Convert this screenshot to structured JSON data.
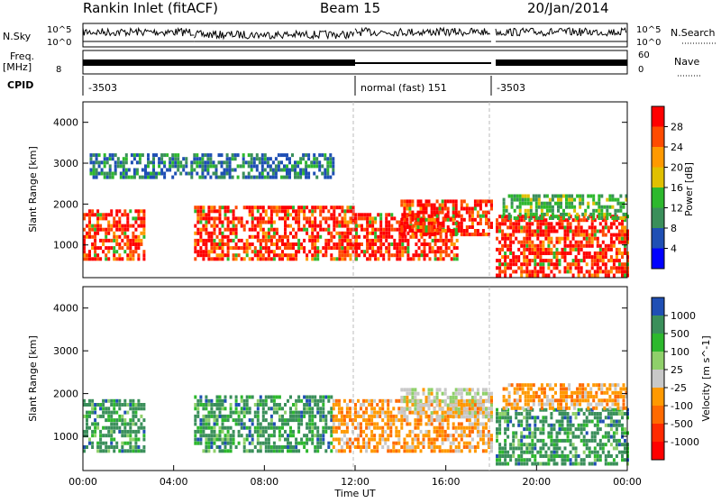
{
  "header": {
    "station": "Rankin Inlet (fitACF)",
    "beam": "Beam 15",
    "date": "20/Jan/2014"
  },
  "top_panels": {
    "nsky_label": "N.Sky",
    "nsky_ticks": [
      "10^5",
      "10^0"
    ],
    "nsearch_label": "N.Search",
    "nsearch_ticks": [
      "10^5",
      "10^0"
    ],
    "freq_label": "Freq.",
    "freq_unit": "[MHz]",
    "freq_ticks": [
      "8"
    ],
    "nave_label": "Nave",
    "nave_ticks": [
      "60",
      "0"
    ],
    "cpid_label": "CPID",
    "cpid_segments": [
      {
        "label": "-3503",
        "start": 0,
        "end": 12
      },
      {
        "label": "normal (fast) 151",
        "start": 12,
        "end": 18
      },
      {
        "label": "-3503",
        "start": 18,
        "end": 24
      }
    ]
  },
  "chart_data": [
    {
      "type": "heatmap",
      "title": "",
      "xlabel": "Time UT",
      "ylabel": "Slant Range [km]",
      "ylim": [
        200,
        4500
      ],
      "xlim": [
        0,
        24
      ],
      "x_ticks": [
        "00:00",
        "04:00",
        "08:00",
        "12:00",
        "16:00",
        "20:00",
        "00:00"
      ],
      "y_ticks": [
        "1000",
        "2000",
        "3000",
        "4000"
      ],
      "colorbar": {
        "label": "Power [dB]",
        "ticks": [
          "4",
          "8",
          "12",
          "16",
          "20",
          "24",
          "28"
        ],
        "colors": [
          "#0000ff",
          "#1f4fb4",
          "#3a8f5a",
          "#2db82d",
          "#e0c000",
          "#ff9900",
          "#ff4b00",
          "#ff0000"
        ]
      },
      "regions": [
        {
          "t0": 0.0,
          "t1": 2.7,
          "r0": 700,
          "r1": 1900,
          "value": "high"
        },
        {
          "t0": 4.9,
          "t1": 12.0,
          "r0": 700,
          "r1": 2000,
          "value": "high"
        },
        {
          "t0": 12.0,
          "t1": 16.5,
          "r0": 700,
          "r1": 1800,
          "value": "high"
        },
        {
          "t0": 14.0,
          "t1": 18.0,
          "r0": 1300,
          "r1": 2200,
          "value": "high"
        },
        {
          "t0": 18.2,
          "t1": 24.0,
          "r0": 300,
          "r1": 1800,
          "value": "high"
        },
        {
          "t0": 0.3,
          "t1": 11.0,
          "r0": 2700,
          "r1": 3300,
          "value": "low"
        },
        {
          "t0": 18.5,
          "t1": 24.0,
          "r0": 1700,
          "r1": 2300,
          "value": "mid"
        }
      ]
    },
    {
      "type": "heatmap",
      "title": "",
      "xlabel": "Time UT",
      "ylabel": "Slant Range [km]",
      "ylim": [
        200,
        4500
      ],
      "xlim": [
        0,
        24
      ],
      "x_ticks": [
        "00:00",
        "04:00",
        "08:00",
        "12:00",
        "16:00",
        "20:00",
        "00:00"
      ],
      "y_ticks": [
        "1000",
        "2000",
        "3000",
        "4000"
      ],
      "colorbar": {
        "label": "Velocity [m s^-1]",
        "ticks": [
          "1000",
          "500",
          "100",
          "25",
          "-25",
          "-100",
          "-500",
          "-1000"
        ],
        "colors": [
          "#1f4fb4",
          "#3a8f5a",
          "#2db82d",
          "#8fd06a",
          "#c8c8c8",
          "#ff9900",
          "#ff6a00",
          "#ff2a00",
          "#ff0000"
        ]
      },
      "regions": [
        {
          "t0": 0.0,
          "t1": 2.7,
          "r0": 700,
          "r1": 1900,
          "value": "positive"
        },
        {
          "t0": 4.9,
          "t1": 11.0,
          "r0": 700,
          "r1": 2000,
          "value": "positive"
        },
        {
          "t0": 11.0,
          "t1": 18.0,
          "r0": 700,
          "r1": 1900,
          "value": "negative"
        },
        {
          "t0": 14.0,
          "t1": 18.0,
          "r0": 1500,
          "r1": 2200,
          "value": "zero"
        },
        {
          "t0": 18.2,
          "t1": 24.0,
          "r0": 400,
          "r1": 1700,
          "value": "positive"
        },
        {
          "t0": 18.5,
          "t1": 24.0,
          "r0": 1700,
          "r1": 2300,
          "value": "negative"
        }
      ]
    }
  ]
}
